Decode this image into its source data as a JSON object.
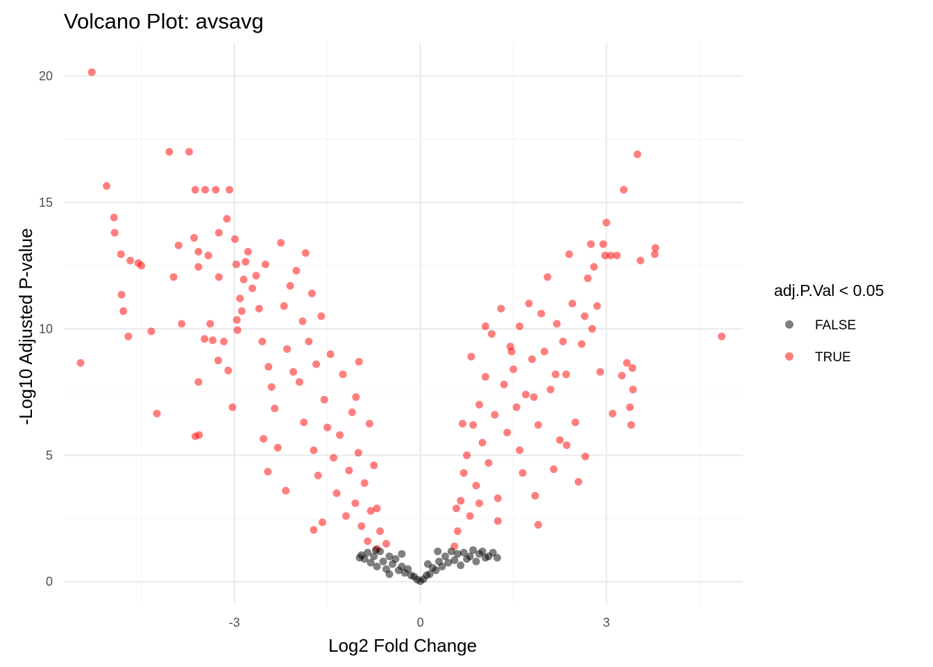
{
  "chart_data": {
    "type": "scatter",
    "title": "Volcano Plot: avsavg",
    "xlabel": "Log2 Fold Change",
    "ylabel": "-Log10 Adjusted P-value",
    "xlim": [
      -5.75,
      5.2
    ],
    "ylim": [
      -0.9,
      21.3
    ],
    "x_ticks": [
      -3,
      0,
      3
    ],
    "x_tick_labels": [
      "-3",
      "0",
      "3"
    ],
    "y_ticks": [
      0,
      5,
      10,
      15,
      20
    ],
    "y_tick_labels": [
      "0",
      "5",
      "10",
      "15",
      "20"
    ],
    "grid": true,
    "legend": {
      "title": "adj.P.Val < 0.05",
      "position": "right",
      "entries": [
        {
          "label": "FALSE",
          "color": "#000000"
        },
        {
          "label": "TRUE",
          "color": "#ff0000"
        }
      ]
    },
    "series": [
      {
        "name": "TRUE",
        "color": "#ff0000",
        "opacity": 0.5,
        "points": [
          [
            -5.3,
            20.15
          ],
          [
            -5.48,
            8.65
          ],
          [
            -5.06,
            15.65
          ],
          [
            -4.94,
            14.4
          ],
          [
            -4.93,
            13.8
          ],
          [
            -4.83,
            12.95
          ],
          [
            -4.82,
            11.35
          ],
          [
            -4.79,
            10.7
          ],
          [
            -4.71,
            9.7
          ],
          [
            -4.68,
            12.7
          ],
          [
            -4.55,
            12.6
          ],
          [
            -4.5,
            12.5
          ],
          [
            -4.34,
            9.9
          ],
          [
            -4.25,
            6.65
          ],
          [
            -4.05,
            17.0
          ],
          [
            -3.98,
            12.05
          ],
          [
            -3.9,
            13.3
          ],
          [
            -3.85,
            10.2
          ],
          [
            -3.73,
            17.0
          ],
          [
            -3.65,
            13.6
          ],
          [
            -3.63,
            15.5
          ],
          [
            -3.63,
            5.75
          ],
          [
            -3.58,
            12.45
          ],
          [
            -3.58,
            13.05
          ],
          [
            -3.58,
            7.9
          ],
          [
            -3.57,
            5.8
          ],
          [
            -3.47,
            15.5
          ],
          [
            -3.48,
            9.6
          ],
          [
            -3.42,
            12.9
          ],
          [
            -3.39,
            10.2
          ],
          [
            -3.35,
            9.55
          ],
          [
            -3.3,
            15.5
          ],
          [
            -3.26,
            8.75
          ],
          [
            -3.25,
            12.05
          ],
          [
            -3.25,
            13.8
          ],
          [
            -3.17,
            9.5
          ],
          [
            -3.12,
            14.35
          ],
          [
            -3.1,
            8.35
          ],
          [
            -3.08,
            15.5
          ],
          [
            -3.03,
            6.9
          ],
          [
            -2.99,
            13.55
          ],
          [
            -2.97,
            12.55
          ],
          [
            -2.96,
            10.35
          ],
          [
            -2.95,
            9.95
          ],
          [
            -2.91,
            11.2
          ],
          [
            -2.88,
            10.7
          ],
          [
            -2.85,
            11.95
          ],
          [
            -2.82,
            12.65
          ],
          [
            -2.78,
            13.05
          ],
          [
            -2.71,
            11.6
          ],
          [
            -2.65,
            12.1
          ],
          [
            -2.6,
            10.8
          ],
          [
            -2.55,
            9.5
          ],
          [
            -2.5,
            12.55
          ],
          [
            -2.45,
            8.5
          ],
          [
            -2.4,
            7.7
          ],
          [
            -2.35,
            6.85
          ],
          [
            -2.3,
            5.3
          ],
          [
            -2.25,
            13.4
          ],
          [
            -2.2,
            10.9
          ],
          [
            -2.15,
            9.2
          ],
          [
            -2.1,
            11.7
          ],
          [
            -2.05,
            8.3
          ],
          [
            -2.0,
            12.3
          ],
          [
            -1.95,
            7.9
          ],
          [
            -1.9,
            10.3
          ],
          [
            -1.88,
            6.3
          ],
          [
            -1.85,
            13.0
          ],
          [
            -1.8,
            9.5
          ],
          [
            -1.75,
            11.4
          ],
          [
            -1.72,
            5.2
          ],
          [
            -1.68,
            8.6
          ],
          [
            -1.65,
            4.2
          ],
          [
            -1.6,
            10.5
          ],
          [
            -1.55,
            7.2
          ],
          [
            -1.5,
            6.1
          ],
          [
            -1.45,
            9.0
          ],
          [
            -1.4,
            4.9
          ],
          [
            -1.35,
            3.5
          ],
          [
            -1.3,
            5.8
          ],
          [
            -1.25,
            8.2
          ],
          [
            -1.2,
            2.6
          ],
          [
            -1.15,
            4.4
          ],
          [
            -1.1,
            6.7
          ],
          [
            -1.05,
            3.1
          ],
          [
            -1.0,
            5.1
          ],
          [
            -0.95,
            2.2
          ],
          [
            -0.9,
            3.9
          ],
          [
            -0.85,
            1.6
          ],
          [
            -0.8,
            2.8
          ],
          [
            -0.75,
            4.6
          ],
          [
            -0.7,
            1.3
          ],
          [
            -0.65,
            2.0
          ],
          [
            -2.46,
            4.35
          ],
          [
            -1.72,
            2.05
          ],
          [
            -1.58,
            2.35
          ],
          [
            -2.17,
            3.6
          ],
          [
            -2.53,
            5.65
          ],
          [
            -1.04,
            7.3
          ],
          [
            -0.99,
            8.7
          ],
          [
            -0.82,
            6.25
          ],
          [
            -0.55,
            1.5
          ],
          [
            -0.7,
            2.9
          ],
          [
            0.55,
            1.4
          ],
          [
            0.6,
            2.0
          ],
          [
            0.65,
            3.2
          ],
          [
            0.7,
            4.3
          ],
          [
            0.75,
            5.0
          ],
          [
            0.8,
            2.6
          ],
          [
            0.85,
            6.2
          ],
          [
            0.9,
            3.8
          ],
          [
            0.95,
            7.0
          ],
          [
            1.0,
            5.5
          ],
          [
            1.05,
            8.1
          ],
          [
            1.1,
            4.7
          ],
          [
            1.15,
            9.8
          ],
          [
            1.2,
            6.6
          ],
          [
            1.25,
            3.3
          ],
          [
            1.3,
            10.8
          ],
          [
            1.35,
            7.8
          ],
          [
            1.4,
            5.9
          ],
          [
            1.45,
            9.3
          ],
          [
            1.5,
            8.4
          ],
          [
            1.55,
            6.9
          ],
          [
            1.6,
            10.1
          ],
          [
            1.65,
            4.3
          ],
          [
            1.7,
            7.4
          ],
          [
            1.75,
            11.0
          ],
          [
            1.8,
            8.8
          ],
          [
            1.85,
            3.4
          ],
          [
            1.9,
            6.2
          ],
          [
            1.95,
            10.6
          ],
          [
            2.0,
            9.1
          ],
          [
            2.05,
            12.05
          ],
          [
            2.1,
            7.6
          ],
          [
            2.15,
            4.45
          ],
          [
            2.2,
            10.2
          ],
          [
            2.25,
            5.6
          ],
          [
            2.3,
            9.5
          ],
          [
            2.35,
            8.2
          ],
          [
            2.4,
            12.95
          ],
          [
            2.45,
            11.0
          ],
          [
            2.5,
            6.3
          ],
          [
            2.55,
            3.95
          ],
          [
            2.6,
            9.4
          ],
          [
            2.65,
            10.5
          ],
          [
            2.7,
            12.0
          ],
          [
            2.75,
            13.35
          ],
          [
            2.8,
            12.45
          ],
          [
            2.85,
            10.9
          ],
          [
            2.9,
            8.3
          ],
          [
            2.95,
            13.35
          ],
          [
            2.98,
            12.9
          ],
          [
            3.0,
            14.2
          ],
          [
            3.07,
            12.9
          ],
          [
            3.1,
            6.65
          ],
          [
            3.17,
            12.9
          ],
          [
            3.25,
            8.15
          ],
          [
            3.28,
            15.5
          ],
          [
            3.33,
            8.65
          ],
          [
            3.38,
            6.9
          ],
          [
            3.4,
            6.2
          ],
          [
            3.42,
            8.45
          ],
          [
            3.43,
            7.6
          ],
          [
            3.5,
            16.9
          ],
          [
            3.55,
            12.7
          ],
          [
            3.78,
            12.95
          ],
          [
            3.79,
            13.2
          ],
          [
            4.86,
            9.7
          ],
          [
            1.9,
            2.25
          ],
          [
            1.25,
            2.4
          ],
          [
            0.95,
            3.1
          ],
          [
            1.6,
            5.2
          ],
          [
            2.18,
            8.2
          ],
          [
            2.66,
            4.95
          ],
          [
            0.68,
            6.25
          ],
          [
            1.83,
            7.3
          ],
          [
            0.58,
            2.9
          ],
          [
            2.36,
            5.4
          ],
          [
            1.47,
            9.1
          ],
          [
            1.05,
            10.1
          ],
          [
            0.82,
            8.9
          ],
          [
            2.77,
            10.0
          ]
        ]
      },
      {
        "name": "FALSE",
        "color": "#000000",
        "opacity": 0.5,
        "points": [
          [
            -0.95,
            1.05
          ],
          [
            -0.9,
            0.9
          ],
          [
            -0.85,
            1.15
          ],
          [
            -0.8,
            0.75
          ],
          [
            -0.75,
            1.0
          ],
          [
            -0.7,
            0.6
          ],
          [
            -0.65,
            1.2
          ],
          [
            -0.6,
            0.8
          ],
          [
            -0.55,
            0.5
          ],
          [
            -0.5,
            1.0
          ],
          [
            -0.45,
            0.7
          ],
          [
            -0.4,
            0.9
          ],
          [
            -0.35,
            0.45
          ],
          [
            -0.3,
            0.6
          ],
          [
            -0.25,
            0.35
          ],
          [
            -0.2,
            0.5
          ],
          [
            -0.15,
            0.25
          ],
          [
            -0.1,
            0.2
          ],
          [
            -0.05,
            0.08
          ],
          [
            0.0,
            0.02
          ],
          [
            0.05,
            0.1
          ],
          [
            0.1,
            0.25
          ],
          [
            0.15,
            0.3
          ],
          [
            0.2,
            0.55
          ],
          [
            0.25,
            0.45
          ],
          [
            0.3,
            0.8
          ],
          [
            0.35,
            0.6
          ],
          [
            0.4,
            1.0
          ],
          [
            0.45,
            0.75
          ],
          [
            0.5,
            1.2
          ],
          [
            0.55,
            0.85
          ],
          [
            0.6,
            1.1
          ],
          [
            0.65,
            0.65
          ],
          [
            0.7,
            1.15
          ],
          [
            0.75,
            0.9
          ],
          [
            0.8,
            1.0
          ],
          [
            0.85,
            1.25
          ],
          [
            0.9,
            0.8
          ],
          [
            0.95,
            1.1
          ],
          [
            1.0,
            1.2
          ],
          [
            1.05,
            0.95
          ],
          [
            1.1,
            1.0
          ],
          [
            1.17,
            1.15
          ],
          [
            1.24,
            0.95
          ],
          [
            -0.98,
            0.95
          ],
          [
            -0.72,
            1.25
          ],
          [
            -0.5,
            0.3
          ],
          [
            0.28,
            1.2
          ],
          [
            0.12,
            0.7
          ],
          [
            -0.3,
            1.1
          ]
        ]
      }
    ]
  }
}
